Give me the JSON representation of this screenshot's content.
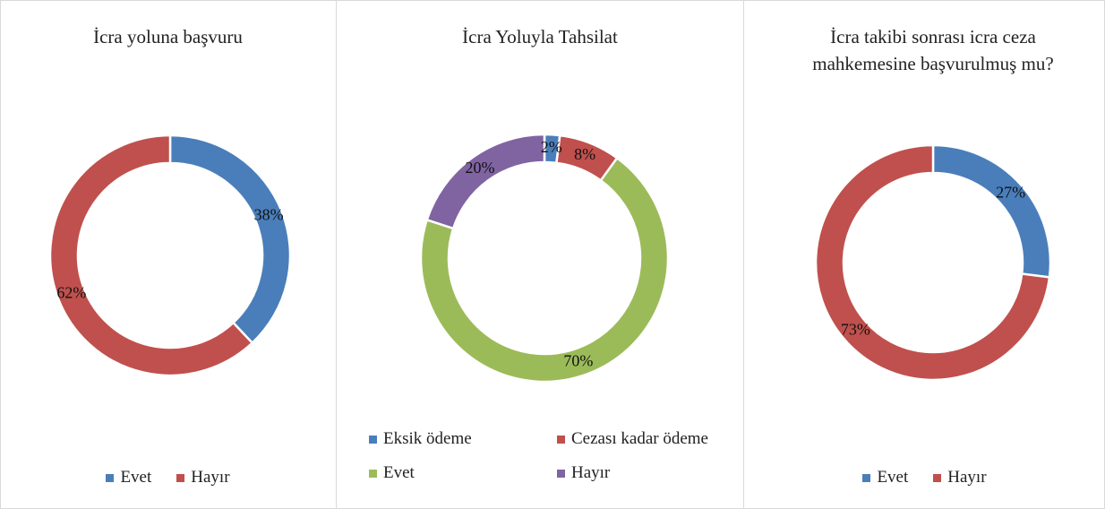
{
  "chart_data": [
    {
      "type": "donut",
      "title": "İcra yoluna başvuru",
      "categories": [
        "Evet",
        "Hayır"
      ],
      "values": [
        38,
        62
      ],
      "value_labels": [
        "38%",
        "62%"
      ],
      "colors": [
        "#4a7ebb",
        "#c0504d"
      ]
    },
    {
      "type": "donut",
      "title": "İcra Yoluyla Tahsilat",
      "categories": [
        "Eksik ödeme",
        "Cezası kadar ödeme",
        "Evet",
        "Hayır"
      ],
      "values": [
        2,
        8,
        70,
        20
      ],
      "value_labels": [
        "2%",
        "8%",
        "70%",
        "20%"
      ],
      "colors": [
        "#4a7ebb",
        "#c0504d",
        "#9bbb59",
        "#8064a2"
      ]
    },
    {
      "type": "donut",
      "title": "İcra takibi sonrası icra ceza mahkemesine başvurulmuş mu?",
      "categories": [
        "Evet",
        "Hayır"
      ],
      "values": [
        27,
        73
      ],
      "value_labels": [
        "27%",
        "73%"
      ],
      "colors": [
        "#4a7ebb",
        "#c0504d"
      ]
    }
  ]
}
